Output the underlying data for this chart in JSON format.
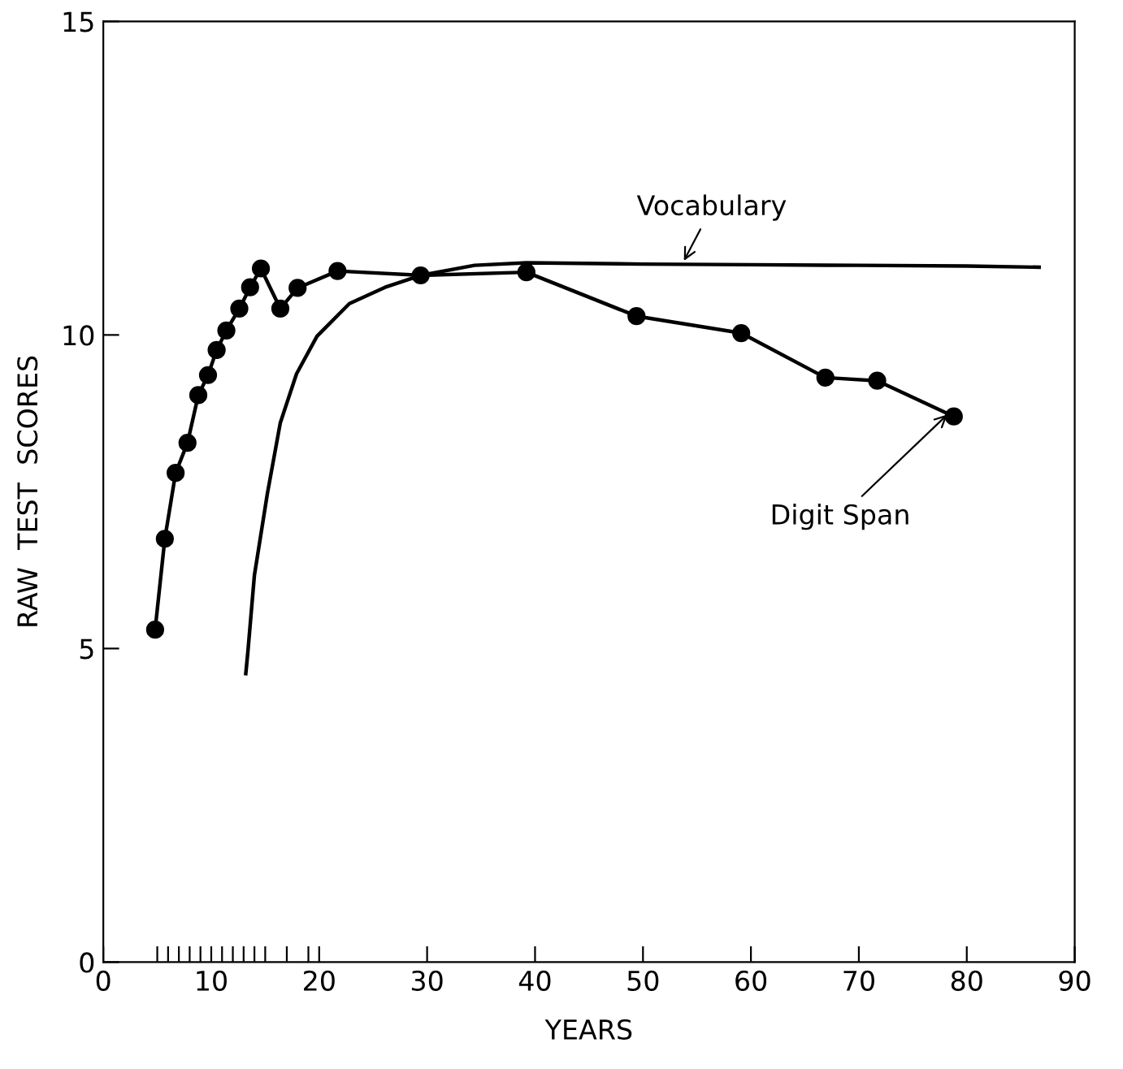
{
  "chart_data": {
    "type": "line",
    "xlabel": "YEARS",
    "ylabel": "RAW  TEST  SCORES",
    "xlim": [
      0,
      90
    ],
    "ylim": [
      0,
      15
    ],
    "xticks": [
      0,
      {
        "value": 5,
        "label": null
      },
      {
        "value": 6,
        "label": null
      },
      {
        "value": 7,
        "label": null
      },
      {
        "value": 8,
        "label": null
      },
      {
        "value": 9,
        "label": null
      },
      10,
      {
        "value": 11,
        "label": null
      },
      {
        "value": 12,
        "label": null
      },
      {
        "value": 13,
        "label": null
      },
      {
        "value": 14,
        "label": null
      },
      {
        "value": 15,
        "label": null
      },
      {
        "value": 17,
        "label": null
      },
      {
        "value": 19,
        "label": null
      },
      20,
      30,
      40,
      50,
      60,
      70,
      80,
      90
    ],
    "yticks": [
      0,
      5,
      10,
      15
    ],
    "grid": false,
    "legend": false,
    "line_style": "solid",
    "series": [
      {
        "color": "#000000",
        "marker": "circle",
        "x": [
          4.8,
          5.7,
          6.7,
          7.8,
          8.8,
          9.7,
          10.5,
          11.4,
          12.6,
          13.6,
          14.6,
          16.4,
          18.0,
          21.7,
          29.4,
          39.2,
          49.4,
          59.1,
          66.9,
          71.7,
          78.8
        ],
        "values": [
          5.3,
          6.75,
          7.8,
          8.28,
          9.04,
          9.36,
          9.76,
          10.07,
          10.42,
          10.76,
          11.06,
          10.42,
          10.75,
          11.02,
          10.95,
          11.0,
          10.3,
          10.03,
          9.32,
          9.27,
          8.7
        ]
      },
      {
        "color": "#000000",
        "marker": "none",
        "x": [
          13.2,
          13.4,
          14.0,
          15.2,
          16.4,
          17.9,
          19.8,
          22.8,
          26.1,
          29.4,
          34.4,
          39.2,
          50,
          60,
          70,
          80,
          86.7
        ],
        "values": [
          4.6,
          4.96,
          6.17,
          7.47,
          8.6,
          9.38,
          9.98,
          10.5,
          10.76,
          10.95,
          11.11,
          11.15,
          11.13,
          11.12,
          11.11,
          11.1,
          11.08
        ]
      }
    ],
    "annotations": [
      {
        "text": "Vocabulary",
        "x": 53.6,
        "y": 11.12
      },
      {
        "text": "Digit Span",
        "x": 78.5,
        "y": 8.78
      }
    ]
  }
}
